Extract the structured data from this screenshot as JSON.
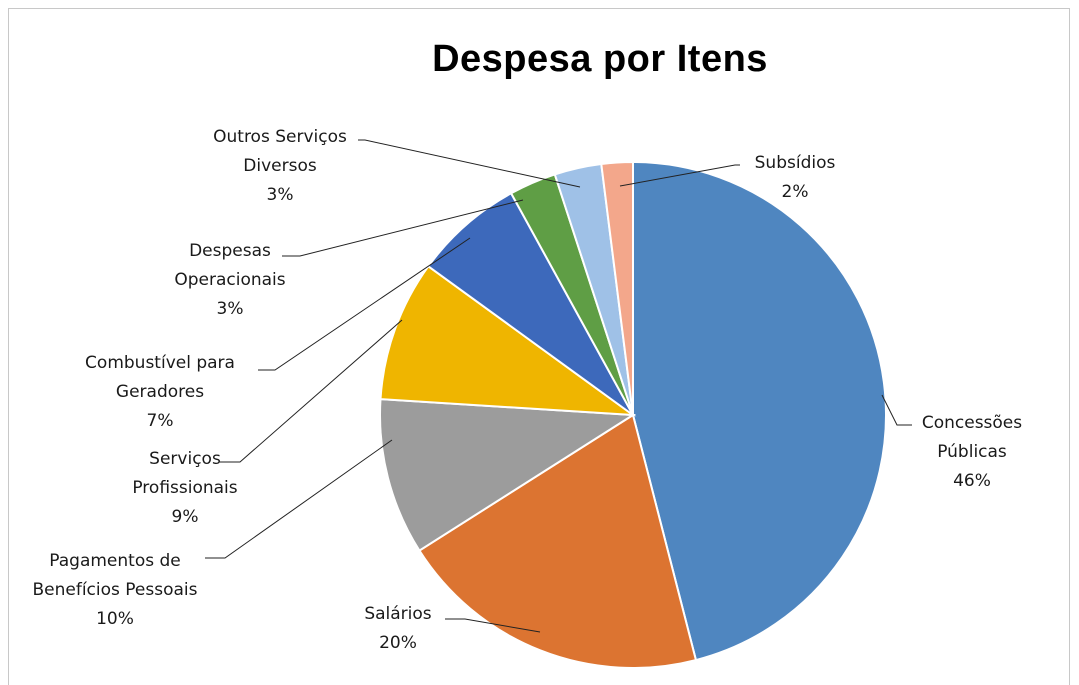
{
  "chart_data": {
    "type": "pie",
    "title": "Despesa por Itens",
    "colors": {
      "Concessões Públicas": "#4f86c0",
      "Salários": "#dc7431",
      "Pagamentos de Benefícios Pessoais": "#9c9c9c",
      "Serviços Profissionais": "#efb500",
      "Combustível para Geradores": "#3d69bb",
      "Despesas Operacionais": "#5f9e45",
      "Outros Serviços Diversos": "#9fc1e7",
      "Subsídios": "#f3a78b"
    },
    "slices": [
      {
        "label": "Concessões Públicas",
        "lines": [
          "Concessões",
          "Públicas"
        ],
        "pct_label": "46%",
        "value": 46
      },
      {
        "label": "Salários",
        "lines": [
          "Salários"
        ],
        "pct_label": "20%",
        "value": 20
      },
      {
        "label": "Pagamentos de Benefícios Pessoais",
        "lines": [
          "Pagamentos de",
          "Benefícios Pessoais"
        ],
        "pct_label": "10%",
        "value": 10
      },
      {
        "label": "Serviços Profissionais",
        "lines": [
          "Serviços",
          "Profissionais"
        ],
        "pct_label": "9%",
        "value": 9
      },
      {
        "label": "Combustível para Geradores",
        "lines": [
          "Combustível para",
          "Geradores"
        ],
        "pct_label": "7%",
        "value": 7
      },
      {
        "label": "Despesas Operacionais",
        "lines": [
          "Despesas",
          "Operacionais"
        ],
        "pct_label": "3%",
        "value": 3
      },
      {
        "label": "Outros Serviços Diversos",
        "lines": [
          "Outros Serviços",
          "Diversos"
        ],
        "pct_label": "3%",
        "value": 3
      },
      {
        "label": "Subsídios",
        "lines": [
          "Subsídios"
        ],
        "pct_label": "2%",
        "value": 2
      }
    ]
  }
}
